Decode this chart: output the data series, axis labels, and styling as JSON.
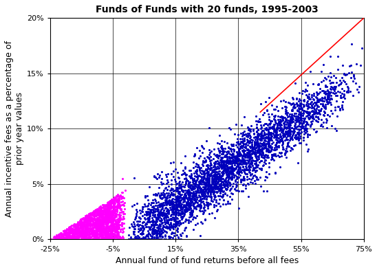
{
  "title": "Funds of Funds with 20 funds, 1995-2003",
  "xlabel": "Annual fund of fund returns before all fees",
  "ylabel": "Annual incentive fees as a percentage of\nprior year values",
  "xlim": [
    -0.25,
    0.75
  ],
  "ylim": [
    0.0,
    0.2
  ],
  "xticks": [
    -0.25,
    -0.05,
    0.15,
    0.35,
    0.55,
    0.75
  ],
  "yticks": [
    0.0,
    0.05,
    0.1,
    0.15,
    0.2
  ],
  "dot_color_negative": "#FF00FF",
  "dot_color_positive": "#0000BB",
  "line_color": "#FF0000",
  "n_negative": 1800,
  "n_positive": 3500,
  "seed": 99,
  "dot_size": 5,
  "incentive_rate": 0.2
}
